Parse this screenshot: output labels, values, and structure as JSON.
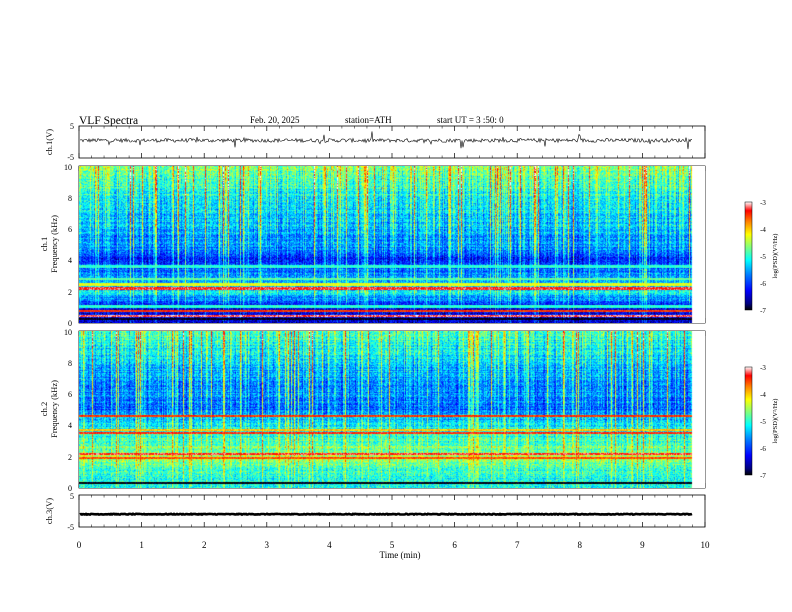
{
  "header": {
    "title": "VLF Spectra",
    "date": "Feb. 20, 2025",
    "station": "station=ATH",
    "start_time": "start UT =  3 :50: 0"
  },
  "colors": {
    "colormap": [
      "#00007f",
      "#0000ff",
      "#007fff",
      "#00ffff",
      "#7fff7f",
      "#ffff00",
      "#ff7f00",
      "#ff0000",
      "#ffffff"
    ]
  },
  "chart_data": [
    {
      "type": "line",
      "ylabel": "ch.1(V)",
      "ylim": [
        -5,
        5
      ],
      "yticks": [
        "5",
        "-5"
      ],
      "xlim": [
        0,
        10
      ],
      "trace_mean_V": 0.5,
      "trace_noise_V": 0.6
    },
    {
      "type": "heatmap",
      "ylabel": "ch.1\nFrequency (kHz)",
      "ylabel_lines": [
        "ch.1",
        "Frequency (kHz)"
      ],
      "ylim": [
        0,
        10
      ],
      "yticks": [
        "0",
        "2",
        "4",
        "6",
        "8",
        "10"
      ],
      "xlim": [
        0,
        10
      ],
      "data_end_min": 9.8,
      "colorbar": {
        "label": "log(PSD)(V²/Hz)",
        "ticks": [
          "-3",
          "-4",
          "-5",
          "-6",
          "-7"
        ],
        "range": [
          -7,
          -3
        ]
      },
      "bands_kHz": [
        {
          "f": 0.25,
          "level": -7
        },
        {
          "f": 0.45,
          "level": -3.2
        },
        {
          "f": 0.75,
          "level": -3.5
        },
        {
          "f": 1.05,
          "level": -5.0
        },
        {
          "f": 2.2,
          "level": -3.3
        },
        {
          "f": 2.45,
          "level": -4.3
        },
        {
          "f": 2.8,
          "level": -4.8
        },
        {
          "f": 3.6,
          "level": -5.0
        }
      ],
      "background_profile": [
        {
          "f": 0.0,
          "level": -6.6
        },
        {
          "f": 1.0,
          "level": -6.2
        },
        {
          "f": 2.0,
          "level": -5.2
        },
        {
          "f": 3.0,
          "level": -5.6
        },
        {
          "f": 4.0,
          "level": -6.1
        },
        {
          "f": 5.0,
          "level": -5.6
        },
        {
          "f": 7.0,
          "level": -5.3
        },
        {
          "f": 9.0,
          "level": -4.9
        },
        {
          "f": 10.0,
          "level": -4.7
        }
      ]
    },
    {
      "type": "heatmap",
      "ylabel": "ch.2\nFrequency (kHz)",
      "ylabel_lines": [
        "ch.2",
        "Frequency (kHz)"
      ],
      "ylim": [
        0,
        10
      ],
      "yticks": [
        "0",
        "2",
        "4",
        "6",
        "8",
        "10"
      ],
      "xlim": [
        0,
        10
      ],
      "data_end_min": 9.8,
      "colorbar": {
        "label": "log(PSD)(V²/Hz)",
        "ticks": [
          "-3",
          "-4",
          "-5",
          "-6",
          "-7"
        ],
        "range": [
          -7,
          -3
        ]
      },
      "bands_kHz": [
        {
          "f": 0.3,
          "level": -7
        },
        {
          "f": 1.9,
          "level": -3.6
        },
        {
          "f": 2.15,
          "level": -3.3
        },
        {
          "f": 3.5,
          "level": -3.4
        },
        {
          "f": 3.7,
          "level": -4.0
        },
        {
          "f": 4.6,
          "level": -3.5
        }
      ],
      "background_profile": [
        {
          "f": 0.0,
          "level": -5.0
        },
        {
          "f": 1.0,
          "level": -5.1
        },
        {
          "f": 2.0,
          "level": -4.6
        },
        {
          "f": 3.0,
          "level": -4.9
        },
        {
          "f": 4.0,
          "level": -5.2
        },
        {
          "f": 5.0,
          "level": -5.8
        },
        {
          "f": 7.0,
          "level": -5.6
        },
        {
          "f": 9.0,
          "level": -5.1
        },
        {
          "f": 10.0,
          "level": -4.8
        }
      ]
    },
    {
      "type": "line",
      "ylabel": "ch.3(V)",
      "ylim": [
        -5,
        5
      ],
      "yticks": [
        "5",
        "-5"
      ],
      "xlim": [
        0,
        10
      ],
      "trace_mean_V": -1.0,
      "trace_noise_V": 0.12
    }
  ],
  "x_axis": {
    "label": "Time (min)",
    "ticks": [
      "0",
      "1",
      "2",
      "3",
      "4",
      "5",
      "6",
      "7",
      "8",
      "9",
      "10"
    ]
  }
}
